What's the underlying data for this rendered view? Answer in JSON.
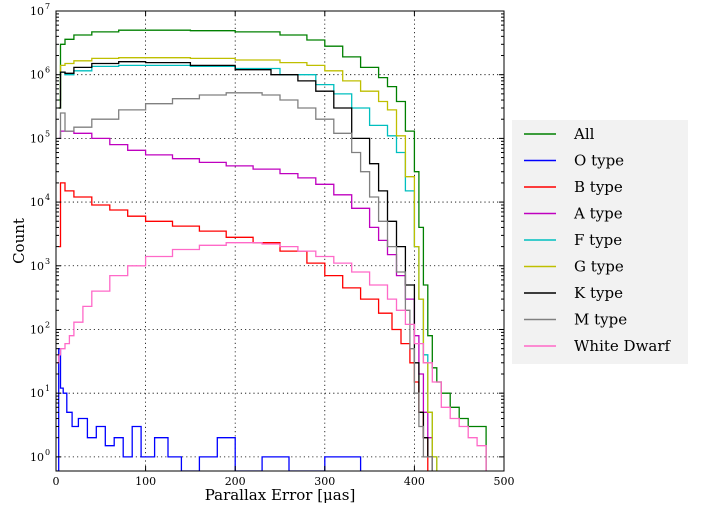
{
  "chart_data": {
    "type": "line",
    "step": true,
    "xlabel_main": "Parallax Error ",
    "xlabel_unit": "[μas]",
    "ylabel": "Count",
    "xlim": [
      0,
      500
    ],
    "ylim": [
      0.6,
      10000000
    ],
    "yscale": "log",
    "grid": true,
    "legend_position": "right",
    "xticks": [
      0,
      100,
      200,
      300,
      400,
      500
    ],
    "xtick_labels": [
      "0",
      "100",
      "200",
      "300",
      "400",
      "500"
    ],
    "yticks": [
      1,
      10,
      100,
      1000,
      10000,
      100000,
      1000000,
      10000000
    ],
    "ytick_labels": [
      "10",
      "10",
      "10",
      "10",
      "10",
      "10",
      "10",
      "10"
    ],
    "ytick_exponents": [
      "0",
      "1",
      "2",
      "3",
      "4",
      "5",
      "6",
      "7"
    ],
    "series": [
      {
        "name": "All",
        "color": "#008000",
        "x": [
          3,
          5,
          10,
          20,
          40,
          70,
          100,
          150,
          200,
          250,
          280,
          300,
          320,
          340,
          360,
          370,
          380,
          390,
          400,
          405,
          410,
          415,
          420,
          425,
          430,
          440,
          450,
          460,
          470,
          480
        ],
        "y": [
          400000,
          3000000,
          3600000,
          4200000,
          4700000,
          5000000,
          5000000,
          4900000,
          4700000,
          4200000,
          3500000,
          2800000,
          1900000,
          1300000,
          900000,
          650000,
          380000,
          130000,
          30000,
          4000,
          500,
          80,
          25,
          15,
          10,
          6,
          4,
          3,
          3,
          0.6
        ]
      },
      {
        "name": "O type",
        "color": "#0000ff",
        "x": [
          1,
          3,
          5,
          8,
          12,
          18,
          25,
          35,
          45,
          55,
          65,
          75,
          85,
          95,
          110,
          125,
          140,
          160,
          180,
          200,
          230,
          260,
          300,
          330,
          340
        ],
        "y": [
          0.6,
          50,
          12,
          10,
          5,
          3,
          4,
          2,
          3,
          1.5,
          2,
          1,
          3,
          1,
          2,
          1,
          0.6,
          1,
          2,
          0.6,
          1,
          0.6,
          1,
          1,
          0.6
        ]
      },
      {
        "name": "B type",
        "color": "#ff0000",
        "x": [
          3,
          5,
          10,
          20,
          40,
          60,
          80,
          100,
          130,
          160,
          190,
          220,
          250,
          280,
          300,
          320,
          340,
          360,
          375,
          385,
          395,
          400,
          405,
          410,
          415
        ],
        "y": [
          2000,
          20000,
          15000,
          12000,
          9000,
          7500,
          6000,
          5000,
          4200,
          3500,
          2800,
          2300,
          1700,
          1100,
          700,
          450,
          300,
          180,
          100,
          60,
          30,
          15,
          5,
          2,
          0.6
        ]
      },
      {
        "name": "A type",
        "color": "#bf00bf",
        "x": [
          3,
          5,
          10,
          20,
          40,
          60,
          80,
          100,
          130,
          160,
          190,
          220,
          250,
          270,
          290,
          310,
          330,
          350,
          360,
          370,
          380,
          390,
          400,
          405,
          410,
          415,
          420
        ],
        "y": [
          100000,
          130000,
          130000,
          120000,
          100000,
          80000,
          65000,
          55000,
          48000,
          42000,
          37000,
          33000,
          28000,
          24000,
          19000,
          13000,
          8000,
          4000,
          2500,
          1500,
          700,
          300,
          80,
          20,
          5,
          2,
          0.6
        ]
      },
      {
        "name": "F type",
        "color": "#00bfbf",
        "x": [
          3,
          5,
          10,
          20,
          40,
          70,
          100,
          150,
          200,
          250,
          290,
          310,
          330,
          350,
          370,
          380,
          390,
          400,
          405,
          410,
          415,
          420,
          425
        ],
        "y": [
          300000,
          1100000,
          1000000,
          1150000,
          1350000,
          1400000,
          1400000,
          1350000,
          1250000,
          1000000,
          700000,
          500000,
          300000,
          160000,
          110000,
          60000,
          15000,
          2000,
          300,
          40,
          5,
          1,
          0.6
        ]
      },
      {
        "name": "G type",
        "color": "#bfbf00",
        "x": [
          3,
          5,
          10,
          20,
          40,
          70,
          100,
          150,
          200,
          250,
          280,
          300,
          320,
          340,
          360,
          370,
          380,
          390,
          400,
          405,
          410,
          415,
          420,
          425
        ],
        "y": [
          300000,
          1400000,
          1500000,
          1650000,
          1800000,
          1850000,
          1850000,
          1800000,
          1700000,
          1550000,
          1400000,
          1150000,
          800000,
          550000,
          380000,
          280000,
          110000,
          25000,
          2000,
          300,
          30,
          5,
          1,
          0.6
        ]
      },
      {
        "name": "K type",
        "color": "#000000",
        "x": [
          3,
          5,
          10,
          20,
          40,
          70,
          100,
          150,
          200,
          240,
          270,
          290,
          310,
          330,
          350,
          360,
          370,
          380,
          390,
          400,
          405,
          410,
          415,
          420
        ],
        "y": [
          300000,
          1100000,
          1050000,
          1300000,
          1500000,
          1600000,
          1550000,
          1400000,
          1200000,
          1000000,
          800000,
          550000,
          300000,
          100000,
          40000,
          15000,
          5000,
          2000,
          500,
          30,
          5,
          2,
          1,
          0.6
        ]
      },
      {
        "name": "M type",
        "color": "#808080",
        "x": [
          3,
          5,
          10,
          20,
          40,
          70,
          100,
          130,
          160,
          190,
          210,
          230,
          250,
          270,
          290,
          310,
          330,
          340,
          350,
          360,
          370,
          380,
          390,
          395,
          400,
          405,
          410,
          420
        ],
        "y": [
          100000,
          250000,
          130000,
          150000,
          200000,
          280000,
          350000,
          420000,
          480000,
          520000,
          520000,
          480000,
          400000,
          300000,
          200000,
          120000,
          60000,
          30000,
          12000,
          5000,
          2000,
          800,
          200,
          50,
          10,
          3,
          1,
          0.6
        ]
      },
      {
        "name": "White Dwarf",
        "color": "#ff69c8",
        "x": [
          1,
          3,
          5,
          10,
          15,
          20,
          30,
          40,
          60,
          80,
          100,
          130,
          160,
          190,
          210,
          230,
          250,
          270,
          290,
          310,
          330,
          350,
          370,
          380,
          390,
          400,
          410,
          420,
          430,
          440,
          450,
          460,
          470,
          480
        ],
        "y": [
          30,
          40,
          50,
          60,
          80,
          130,
          230,
          400,
          700,
          1000,
          1400,
          1800,
          2100,
          2300,
          2300,
          2200,
          2000,
          1700,
          1400,
          1100,
          800,
          500,
          300,
          200,
          120,
          60,
          30,
          15,
          6,
          4,
          3,
          2,
          1.5,
          0.6
        ]
      }
    ]
  }
}
